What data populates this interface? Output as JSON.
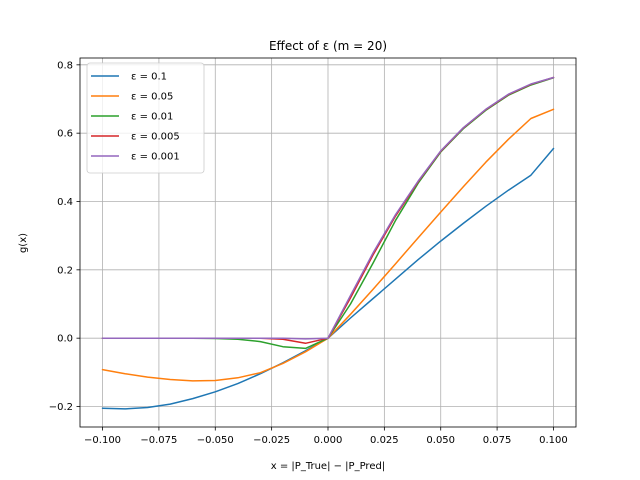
{
  "chart_data": {
    "type": "line",
    "title": "Effect of ε (m = 20)",
    "xlabel": "x = |P_True| − |P_Pred|",
    "ylabel": "g(x)",
    "xlim": [
      -0.11,
      0.11
    ],
    "ylim": [
      -0.26,
      0.82
    ],
    "grid": true,
    "legend_position": "top-left",
    "x_ticks": [
      -0.1,
      -0.075,
      -0.05,
      -0.025,
      0.0,
      0.025,
      0.05,
      0.075,
      0.1
    ],
    "x_tick_labels": [
      "−0.100",
      "−0.075",
      "−0.050",
      "−0.025",
      "0.000",
      "0.025",
      "0.050",
      "0.075",
      "0.100"
    ],
    "y_ticks": [
      -0.2,
      0.0,
      0.2,
      0.4,
      0.6,
      0.8
    ],
    "y_tick_labels": [
      "−0.2",
      "0.0",
      "0.2",
      "0.4",
      "0.6",
      "0.8"
    ],
    "x": [
      -0.1,
      -0.09,
      -0.08,
      -0.07,
      -0.06,
      -0.05,
      -0.04,
      -0.03,
      -0.02,
      -0.01,
      0.0,
      0.01,
      0.02,
      0.03,
      0.04,
      0.05,
      0.06,
      0.07,
      0.08,
      0.09,
      0.1
    ],
    "series": [
      {
        "name": "ε = 0.1",
        "color": "#1f77b4",
        "values": [
          -0.205,
          -0.207,
          -0.203,
          -0.193,
          -0.177,
          -0.157,
          -0.133,
          -0.104,
          -0.072,
          -0.037,
          0.0,
          0.059,
          0.116,
          0.173,
          0.23,
          0.284,
          0.336,
          0.386,
          0.433,
          0.477,
          0.555
        ]
      },
      {
        "name": "ε = 0.05",
        "color": "#ff7f0e",
        "values": [
          -0.092,
          -0.104,
          -0.114,
          -0.121,
          -0.125,
          -0.124,
          -0.116,
          -0.101,
          -0.074,
          -0.04,
          0.0,
          0.07,
          0.143,
          0.218,
          0.294,
          0.369,
          0.443,
          0.515,
          0.582,
          0.643,
          0.67
        ]
      },
      {
        "name": "ε = 0.01",
        "color": "#2ca02c",
        "values": [
          0.0,
          0.0,
          0.0,
          0.0,
          0.0,
          -0.001,
          -0.003,
          -0.01,
          -0.025,
          -0.03,
          0.0,
          0.1,
          0.22,
          0.345,
          0.454,
          0.545,
          0.613,
          0.667,
          0.711,
          0.741,
          0.762
        ]
      },
      {
        "name": "ε = 0.005",
        "color": "#d62728",
        "values": [
          0.0,
          0.0,
          0.0,
          0.0,
          0.0,
          0.0,
          0.0,
          0.0,
          -0.003,
          -0.015,
          0.0,
          0.118,
          0.244,
          0.358,
          0.458,
          0.547,
          0.615,
          0.669,
          0.713,
          0.743,
          0.763
        ]
      },
      {
        "name": "ε = 0.001",
        "color": "#9467bd",
        "values": [
          0.0,
          0.0,
          0.0,
          0.0,
          0.0,
          0.0,
          0.0,
          0.0,
          0.0,
          -0.002,
          0.0,
          0.125,
          0.25,
          0.362,
          0.46,
          0.548,
          0.616,
          0.67,
          0.714,
          0.744,
          0.763
        ]
      }
    ]
  }
}
